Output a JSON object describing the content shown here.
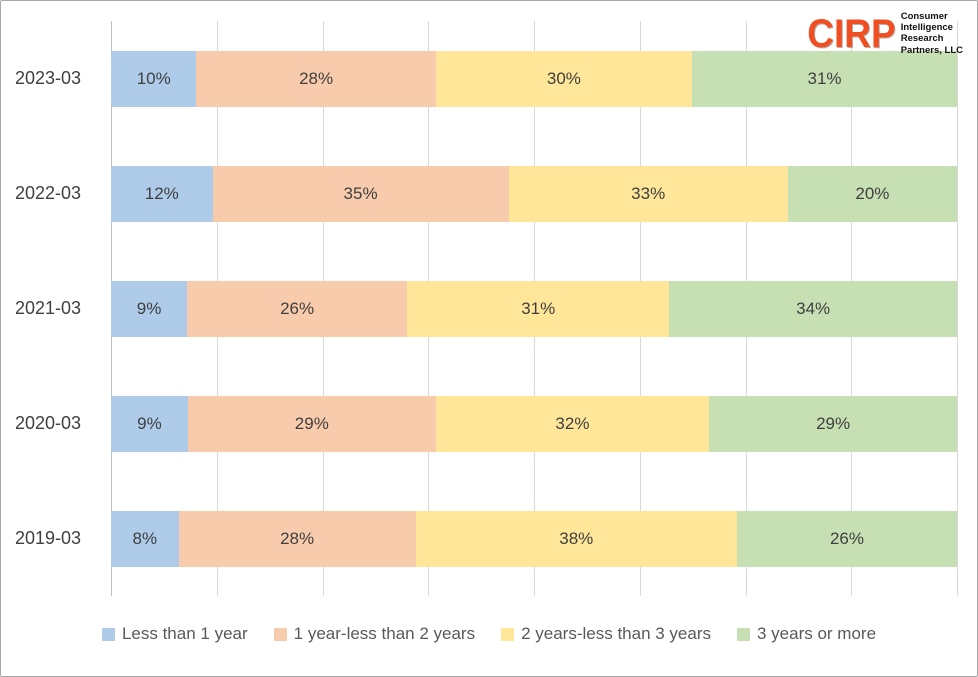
{
  "logo": {
    "name": "CIRP",
    "subtitle_lines": [
      "Consumer",
      "Intelligence",
      "Research",
      "Partners, LLC"
    ]
  },
  "chart_data": {
    "type": "bar",
    "orientation": "horizontal",
    "stacked": true,
    "percent_stacked": true,
    "categories": [
      "2023-03",
      "2022-03",
      "2021-03",
      "2020-03",
      "2019-03"
    ],
    "series": [
      {
        "name": "Less than 1 year",
        "color": "#AECBEA",
        "values": [
          10,
          12,
          9,
          9,
          8
        ]
      },
      {
        "name": "1 year-less than 2 years",
        "color": "#F8CBAD",
        "values": [
          28,
          35,
          26,
          29,
          28
        ]
      },
      {
        "name": "2 years-less than 3 years",
        "color": "#FFE699",
        "values": [
          30,
          33,
          31,
          32,
          38
        ]
      },
      {
        "name": "3 years or more",
        "color": "#C6E0B4",
        "values": [
          31,
          20,
          34,
          29,
          26
        ]
      }
    ],
    "value_suffix": "%",
    "xlim": [
      0,
      100
    ],
    "grid": true,
    "grid_intervals": 8,
    "legend_position": "bottom",
    "title": "",
    "xlabel": "",
    "ylabel": ""
  },
  "colors": {
    "gridline": "#D9D9D9",
    "axis_line": "#BFBFBF",
    "label_text": "#404040",
    "legend_text": "#595959",
    "logo_orange": "#F04F23",
    "frame_border": "#A6A6A6"
  }
}
